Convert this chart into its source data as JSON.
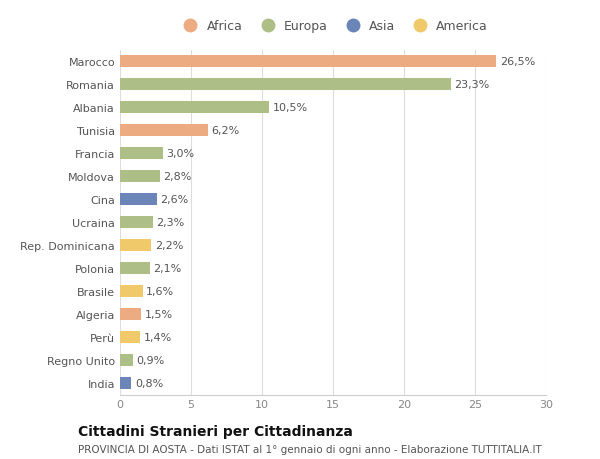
{
  "countries": [
    "India",
    "Regno Unito",
    "Perù",
    "Algeria",
    "Brasile",
    "Polonia",
    "Rep. Dominicana",
    "Ucraina",
    "Cina",
    "Moldova",
    "Francia",
    "Tunisia",
    "Albania",
    "Romania",
    "Marocco"
  ],
  "values": [
    0.8,
    0.9,
    1.4,
    1.5,
    1.6,
    2.1,
    2.2,
    2.3,
    2.6,
    2.8,
    3.0,
    6.2,
    10.5,
    23.3,
    26.5
  ],
  "labels": [
    "0,8%",
    "0,9%",
    "1,4%",
    "1,5%",
    "1,6%",
    "2,1%",
    "2,2%",
    "2,3%",
    "2,6%",
    "2,8%",
    "3,0%",
    "6,2%",
    "10,5%",
    "23,3%",
    "26,5%"
  ],
  "continent": [
    "Asia",
    "Europa",
    "America",
    "Africa",
    "America",
    "Europa",
    "America",
    "Europa",
    "Asia",
    "Europa",
    "Europa",
    "Africa",
    "Europa",
    "Europa",
    "Africa"
  ],
  "colors": {
    "Africa": "#EDAB82",
    "Europa": "#ADBF87",
    "Asia": "#6B85B8",
    "America": "#F0C96A"
  },
  "title": "Cittadini Stranieri per Cittadinanza",
  "subtitle": "PROVINCIA DI AOSTA - Dati ISTAT al 1° gennaio di ogni anno - Elaborazione TUTTITALIA.IT",
  "xlim": [
    0,
    30
  ],
  "xticks": [
    0,
    5,
    10,
    15,
    20,
    25,
    30
  ],
  "background_color": "#ffffff",
  "bar_height": 0.55,
  "title_fontsize": 10,
  "subtitle_fontsize": 7.5,
  "label_fontsize": 8,
  "ytick_fontsize": 8,
  "xtick_fontsize": 8,
  "legend_fontsize": 9,
  "legend_order": [
    "Africa",
    "Europa",
    "Asia",
    "America"
  ]
}
